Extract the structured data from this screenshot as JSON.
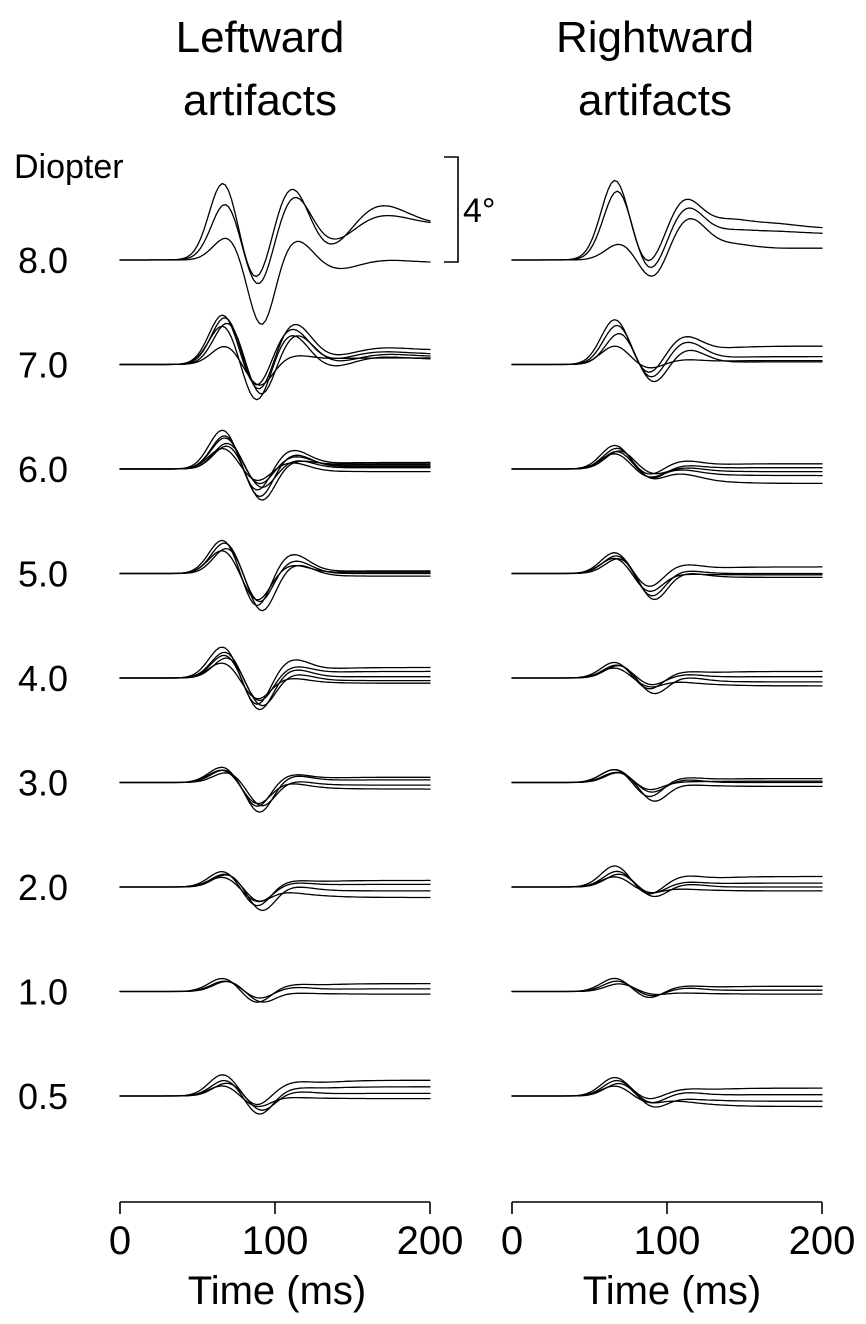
{
  "chart_data": {
    "type": "line",
    "panels": [
      {
        "title": [
          "Leftward",
          "artifacts"
        ],
        "direction": "leftward"
      },
      {
        "title": [
          "Rightward",
          "artifacts"
        ],
        "direction": "rightward"
      }
    ],
    "row_axis_label": "Diopter",
    "rows": [
      "8.0",
      "7.0",
      "6.0",
      "5.0",
      "4.0",
      "3.0",
      "2.0",
      "1.0",
      "0.5"
    ],
    "xlabel": "Time (ms)",
    "xlim": [
      0,
      200
    ],
    "xticks": [
      "0",
      "100",
      "200"
    ],
    "scale_bar_label": "4°",
    "scale_bar_deg": 4,
    "series": [
      {
        "panel": 0,
        "row": "8.0",
        "name": "",
        "traces": [
          {
            "amps": [
              2.9,
              -1.3,
              2.2,
              -0.9,
              0.8
            ],
            "end": 1.35
          },
          {
            "amps": [
              2.1,
              -1.5,
              1.8,
              -0.6,
              0.4
            ],
            "end": 1.35
          },
          {
            "amps": [
              0.9,
              -2.6,
              0.9,
              -0.3,
              0.1
            ],
            "end": -0.1
          }
        ]
      },
      {
        "panel": 1,
        "row": "8.0",
        "name": "",
        "traces": [
          {
            "amps": [
              3.0,
              -0.6,
              1.6,
              0.4,
              0.2
            ],
            "end": 1.2
          },
          {
            "amps": [
              2.6,
              -0.8,
              1.4,
              0.2,
              0.1
            ],
            "end": 1.0
          },
          {
            "amps": [
              0.6,
              -0.9,
              1.3,
              0.2,
              0.0
            ],
            "end": 0.45
          }
        ]
      },
      {
        "panel": 0,
        "row": "7.0",
        "name": "",
        "traces": [
          {
            "amps": [
              1.9,
              -1.1,
              1.2,
              -0.2,
              0.1
            ],
            "end": 0.4
          },
          {
            "amps": [
              1.8,
              -1.3,
              1.3,
              -0.2,
              0.1
            ],
            "end": 0.55
          },
          {
            "amps": [
              1.6,
              -1.4,
              1.0,
              -0.2,
              0.1
            ],
            "end": 0.3
          },
          {
            "amps": [
              1.5,
              -1.6,
              1.1,
              -0.3,
              0.1
            ],
            "end": 0.2
          },
          {
            "amps": [
              0.7,
              -0.9,
              0.2,
              0.0,
              0.0
            ],
            "end": 0.25
          }
        ]
      },
      {
        "panel": 1,
        "row": "7.0",
        "name": "",
        "traces": [
          {
            "amps": [
              1.7,
              -0.6,
              0.7,
              0.0,
              0.0
            ],
            "end": 0.7
          },
          {
            "amps": [
              1.5,
              -0.7,
              0.7,
              0.0,
              0.0
            ],
            "end": 0.3
          },
          {
            "amps": [
              1.2,
              -0.8,
              0.5,
              0.0,
              0.0
            ],
            "end": 0.1
          },
          {
            "amps": [
              0.7,
              -0.2,
              0.1,
              0.0,
              0.0
            ],
            "end": 0.15
          }
        ]
      },
      {
        "panel": 0,
        "row": "6.0",
        "name": "",
        "traces": [
          {
            "amps": [
              1.5,
              -1.0,
              0.6,
              0.0,
              0.0
            ],
            "end": 0.25
          },
          {
            "amps": [
              1.2,
              -0.7,
              0.4,
              0.0,
              0.0
            ],
            "end": 0.15
          },
          {
            "amps": [
              1.0,
              -0.8,
              0.3,
              0.0,
              0.0
            ],
            "end": 0.05
          },
          {
            "amps": [
              0.8,
              -0.5,
              0.3,
              0.0,
              0.0
            ],
            "end": -0.1
          },
          {
            "amps": [
              1.3,
              -1.2,
              0.5,
              0.0,
              0.0
            ],
            "end": 0.1
          },
          {
            "amps": [
              0.9,
              -1.3,
              0.2,
              0.0,
              0.0
            ],
            "end": 0.2
          }
        ]
      },
      {
        "panel": 1,
        "row": "6.0",
        "name": "",
        "traces": [
          {
            "amps": [
              0.9,
              -0.3,
              0.2,
              0.0,
              0.0
            ],
            "end": 0.2
          },
          {
            "amps": [
              0.8,
              -0.4,
              0.1,
              0.0,
              0.0
            ],
            "end": 0.05
          },
          {
            "amps": [
              0.7,
              -0.2,
              0.1,
              0.0,
              0.0
            ],
            "end": -0.1
          },
          {
            "amps": [
              0.6,
              -0.3,
              0.1,
              0.0,
              0.0
            ],
            "end": -0.25
          },
          {
            "amps": [
              0.7,
              -0.3,
              0.1,
              0.0,
              0.0
            ],
            "end": -0.55
          }
        ]
      },
      {
        "panel": 0,
        "row": "5.0",
        "name": "",
        "traces": [
          {
            "amps": [
              1.3,
              -1.4,
              0.7,
              0.0,
              0.0
            ],
            "end": 0.1
          },
          {
            "amps": [
              1.2,
              -1.2,
              0.5,
              0.0,
              0.0
            ],
            "end": 0.0
          },
          {
            "amps": [
              1.0,
              -1.5,
              0.4,
              0.0,
              0.0
            ],
            "end": -0.1
          },
          {
            "amps": [
              0.9,
              -1.1,
              0.3,
              0.0,
              0.0
            ],
            "end": 0.05
          }
        ]
      },
      {
        "panel": 1,
        "row": "5.0",
        "name": "",
        "traces": [
          {
            "amps": [
              0.8,
              -0.6,
              0.2,
              0.0,
              0.0
            ],
            "end": 0.25
          },
          {
            "amps": [
              0.7,
              -0.9,
              0.1,
              0.0,
              0.0
            ],
            "end": 0.0
          },
          {
            "amps": [
              0.6,
              -1.0,
              0.1,
              0.0,
              0.0
            ],
            "end": -0.15
          },
          {
            "amps": [
              0.6,
              -0.7,
              0.0,
              0.0,
              0.0
            ],
            "end": -0.05
          }
        ]
      },
      {
        "panel": 0,
        "row": "4.0",
        "name": "",
        "traces": [
          {
            "amps": [
              1.2,
              -1.2,
              0.5,
              0.0,
              0.0
            ],
            "end": 0.4
          },
          {
            "amps": [
              1.0,
              -1.0,
              0.3,
              0.0,
              0.0
            ],
            "end": 0.25
          },
          {
            "amps": [
              0.8,
              -1.1,
              0.2,
              0.0,
              0.0
            ],
            "end": -0.1
          },
          {
            "amps": [
              0.6,
              -0.8,
              0.1,
              0.0,
              0.0
            ],
            "end": -0.2
          },
          {
            "amps": [
              0.9,
              -1.3,
              0.3,
              0.0,
              0.0
            ],
            "end": 0.05
          }
        ]
      },
      {
        "panel": 1,
        "row": "4.0",
        "name": "",
        "traces": [
          {
            "amps": [
              0.6,
              -0.5,
              0.1,
              0.0,
              0.0
            ],
            "end": 0.25
          },
          {
            "amps": [
              0.5,
              -0.3,
              0.1,
              0.0,
              0.0
            ],
            "end": 0.05
          },
          {
            "amps": [
              0.5,
              -0.6,
              0.1,
              0.0,
              0.0
            ],
            "end": -0.15
          },
          {
            "amps": [
              0.4,
              -0.3,
              0.0,
              0.0,
              0.0
            ],
            "end": -0.3
          }
        ]
      },
      {
        "panel": 0,
        "row": "3.0",
        "name": "",
        "traces": [
          {
            "amps": [
              0.6,
              -1.0,
              0.2,
              0.0,
              0.0
            ],
            "end": 0.2
          },
          {
            "amps": [
              0.5,
              -1.2,
              0.2,
              0.0,
              0.0
            ],
            "end": 0.1
          },
          {
            "amps": [
              0.4,
              -0.9,
              0.1,
              0.0,
              0.0
            ],
            "end": -0.1
          },
          {
            "amps": [
              0.5,
              -0.8,
              0.1,
              0.0,
              0.0
            ],
            "end": -0.25
          }
        ]
      },
      {
        "panel": 1,
        "row": "3.0",
        "name": "",
        "traces": [
          {
            "amps": [
              0.5,
              -0.6,
              0.1,
              0.0,
              0.0
            ],
            "end": 0.15
          },
          {
            "amps": [
              0.4,
              -0.4,
              0.1,
              0.0,
              0.0
            ],
            "end": 0.0
          },
          {
            "amps": [
              0.4,
              -0.7,
              0.0,
              0.0,
              0.0
            ],
            "end": -0.15
          },
          {
            "amps": [
              0.5,
              -0.3,
              0.0,
              0.0,
              0.0
            ],
            "end": 0.05
          }
        ]
      },
      {
        "panel": 0,
        "row": "2.0",
        "name": "",
        "traces": [
          {
            "amps": [
              0.6,
              -0.8,
              0.1,
              0.0,
              0.0
            ],
            "end": 0.25
          },
          {
            "amps": [
              0.5,
              -0.6,
              0.1,
              0.0,
              0.0
            ],
            "end": 0.1
          },
          {
            "amps": [
              0.5,
              -0.9,
              0.1,
              0.0,
              0.0
            ],
            "end": -0.15
          },
          {
            "amps": [
              0.4,
              -0.5,
              0.0,
              0.0,
              0.0
            ],
            "end": -0.4
          }
        ]
      },
      {
        "panel": 1,
        "row": "2.0",
        "name": "",
        "traces": [
          {
            "amps": [
              0.8,
              -0.4,
              0.2,
              0.0,
              0.0
            ],
            "end": 0.4
          },
          {
            "amps": [
              0.6,
              -0.3,
              0.1,
              0.0,
              0.0
            ],
            "end": 0.15
          },
          {
            "amps": [
              0.5,
              -0.4,
              0.1,
              0.0,
              0.0
            ],
            "end": 0.0
          },
          {
            "amps": [
              0.4,
              -0.2,
              0.0,
              0.0,
              0.0
            ],
            "end": -0.15
          }
        ]
      },
      {
        "panel": 0,
        "row": "1.0",
        "name": "",
        "traces": [
          {
            "amps": [
              0.5,
              -0.5,
              0.1,
              0.0,
              0.0
            ],
            "end": 0.3
          },
          {
            "amps": [
              0.4,
              -0.3,
              0.1,
              0.0,
              0.0
            ],
            "end": 0.1
          },
          {
            "amps": [
              0.4,
              -0.4,
              0.0,
              0.0,
              0.0
            ],
            "end": -0.1
          }
        ]
      },
      {
        "panel": 1,
        "row": "1.0",
        "name": "",
        "traces": [
          {
            "amps": [
              0.5,
              -0.3,
              0.1,
              0.0,
              0.0
            ],
            "end": 0.2
          },
          {
            "amps": [
              0.4,
              -0.2,
              0.1,
              0.0,
              0.0
            ],
            "end": 0.05
          },
          {
            "amps": [
              0.3,
              -0.1,
              0.0,
              0.0,
              0.0
            ],
            "end": -0.1
          }
        ]
      },
      {
        "panel": 0,
        "row": "0.5",
        "name": "",
        "traces": [
          {
            "amps": [
              0.8,
              -0.5,
              0.2,
              0.0,
              0.0
            ],
            "end": 0.6
          },
          {
            "amps": [
              0.6,
              -0.8,
              0.1,
              0.0,
              0.0
            ],
            "end": 0.35
          },
          {
            "amps": [
              0.5,
              -0.6,
              0.1,
              0.0,
              0.0
            ],
            "end": 0.1
          },
          {
            "amps": [
              0.4,
              -0.4,
              0.0,
              0.0,
              0.0
            ],
            "end": -0.1
          }
        ]
      },
      {
        "panel": 1,
        "row": "0.5",
        "name": "",
        "traces": [
          {
            "amps": [
              0.7,
              -0.2,
              0.1,
              0.0,
              0.0
            ],
            "end": 0.3
          },
          {
            "amps": [
              0.6,
              -0.3,
              0.1,
              0.0,
              0.0
            ],
            "end": 0.05
          },
          {
            "amps": [
              0.5,
              -0.4,
              0.0,
              0.0,
              0.0
            ],
            "end": -0.2
          },
          {
            "amps": [
              0.4,
              -0.2,
              0.0,
              0.0,
              0.0
            ],
            "end": -0.4
          }
        ]
      }
    ]
  }
}
